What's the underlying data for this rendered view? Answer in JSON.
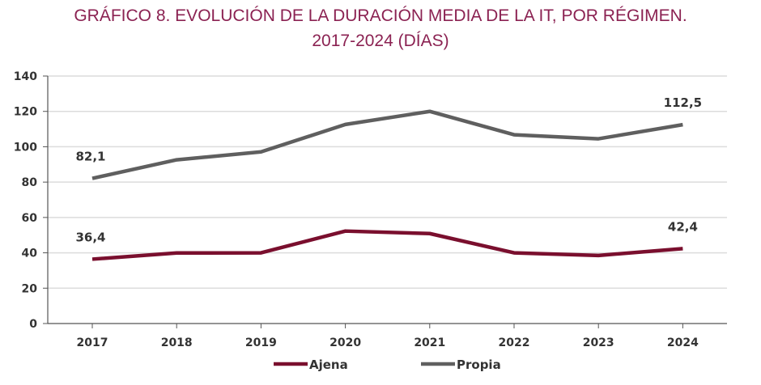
{
  "chart_data": {
    "type": "line",
    "title_line1": "GRÁFICO 8.  EVOLUCIÓN DE LA DURACIÓN MEDIA DE LA IT, POR RÉGIMEN.",
    "title_line2": "2017-2024 (DÍAS)",
    "categories": [
      "2017",
      "2018",
      "2019",
      "2020",
      "2021",
      "2022",
      "2023",
      "2024"
    ],
    "ylim": [
      0,
      140
    ],
    "yticks": [
      0,
      20,
      40,
      60,
      80,
      100,
      120,
      140
    ],
    "grid": true,
    "legend_placement": "bottom",
    "series": [
      {
        "name": "Ajena",
        "color": "#7a0f2e",
        "values": [
          36.4,
          39.9,
          40.0,
          52.3,
          50.9,
          40.0,
          38.5,
          42.4
        ],
        "labels": {
          "0": "36,4",
          "7": "42,4"
        }
      },
      {
        "name": "Propia",
        "color": "#5f5f5f",
        "values": [
          82.1,
          92.6,
          97.1,
          112.6,
          120.0,
          106.8,
          104.5,
          112.5
        ],
        "labels": {
          "0": "82,1",
          "7": "112,5"
        }
      }
    ]
  }
}
